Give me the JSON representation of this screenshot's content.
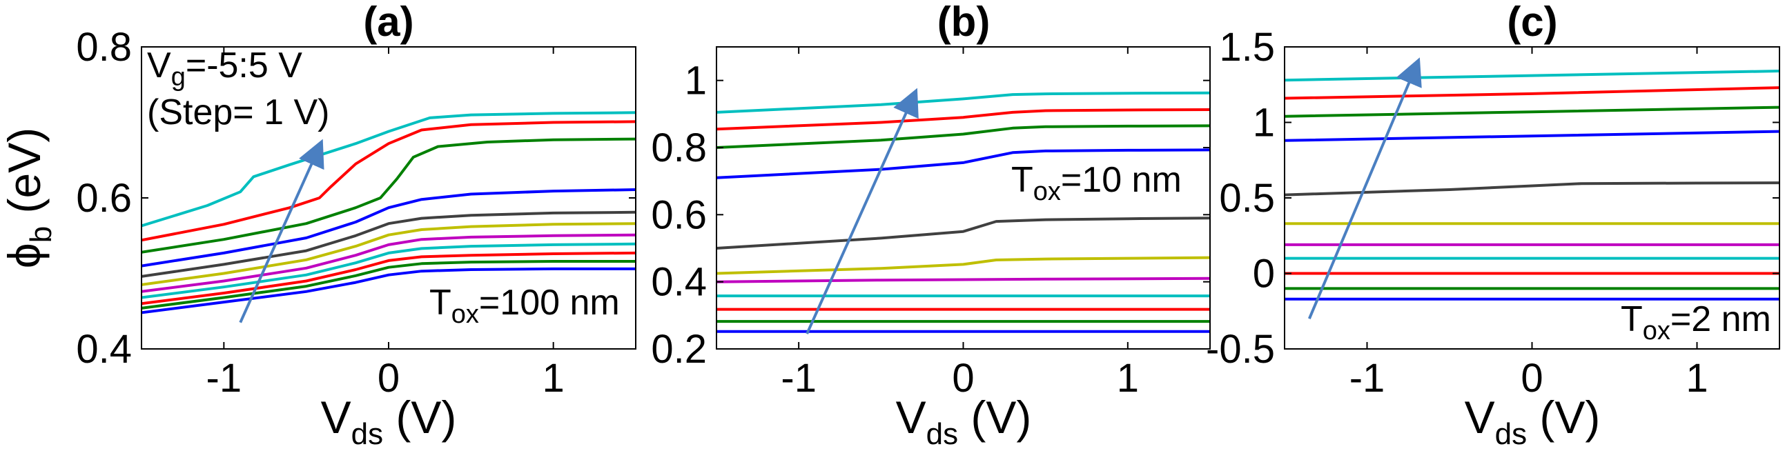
{
  "chart_data": [
    {
      "type": "line",
      "title": "(a)",
      "xlabel": "V",
      "xlabel_sub": "ds",
      "xlabel_unit": " (V)",
      "ylabel": "ϕ",
      "ylabel_sub": "b",
      "ylabel_unit": " (eV)",
      "xlim": [
        -1.5,
        1.5
      ],
      "ylim": [
        0.4,
        0.8
      ],
      "xticks": [
        -1,
        0,
        1
      ],
      "xtick_labels": [
        "-1",
        "0",
        "1"
      ],
      "yticks": [
        0.4,
        0.6,
        0.8
      ],
      "ytick_labels": [
        "0.4",
        "0.6",
        "0.8"
      ],
      "annotations": [
        {
          "base": "V",
          "sub": "g",
          "text": "=-5:5 V"
        },
        {
          "text": "(Step= 1 V)"
        },
        {
          "base": "T",
          "sub": "ox",
          "text": "=100 nm"
        }
      ],
      "arrow": {
        "from": [
          -0.9,
          0.435
        ],
        "to": [
          -0.42,
          0.668
        ]
      },
      "series": [
        {
          "name": "Vg=-5 V",
          "color": "#0000ff",
          "x": [
            -1.5,
            -1.0,
            -0.5,
            -0.2,
            0.0,
            0.2,
            0.5,
            1.0,
            1.5
          ],
          "y": [
            0.448,
            0.462,
            0.476,
            0.488,
            0.498,
            0.503,
            0.505,
            0.506,
            0.506
          ]
        },
        {
          "name": "Vg=-4 V",
          "color": "#008000",
          "x": [
            -1.5,
            -1.0,
            -0.5,
            -0.2,
            0.0,
            0.2,
            0.5,
            1.0,
            1.5
          ],
          "y": [
            0.454,
            0.468,
            0.483,
            0.497,
            0.508,
            0.513,
            0.515,
            0.516,
            0.516
          ]
        },
        {
          "name": "Vg=-3 V",
          "color": "#ff0000",
          "x": [
            -1.5,
            -1.0,
            -0.5,
            -0.2,
            0.0,
            0.2,
            0.5,
            1.0,
            1.5
          ],
          "y": [
            0.46,
            0.474,
            0.49,
            0.505,
            0.517,
            0.522,
            0.524,
            0.526,
            0.527
          ]
        },
        {
          "name": "Vg=-2 V",
          "color": "#00bfbf",
          "x": [
            -1.5,
            -1.0,
            -0.5,
            -0.2,
            0.0,
            0.2,
            0.5,
            1.0,
            1.5
          ],
          "y": [
            0.468,
            0.482,
            0.498,
            0.514,
            0.527,
            0.533,
            0.536,
            0.538,
            0.539
          ]
        },
        {
          "name": "Vg=-1 V",
          "color": "#bf00bf",
          "x": [
            -1.5,
            -1.0,
            -0.5,
            -0.2,
            0.0,
            0.2,
            0.5,
            1.0,
            1.5
          ],
          "y": [
            0.476,
            0.49,
            0.507,
            0.524,
            0.538,
            0.545,
            0.548,
            0.55,
            0.551
          ]
        },
        {
          "name": "Vg=0 V",
          "color": "#bfbf00",
          "x": [
            -1.5,
            -1.0,
            -0.5,
            -0.2,
            0.0,
            0.2,
            0.5,
            1.0,
            1.5
          ],
          "y": [
            0.485,
            0.5,
            0.518,
            0.536,
            0.551,
            0.558,
            0.562,
            0.565,
            0.566
          ]
        },
        {
          "name": "Vg=1 V",
          "color": "#404040",
          "x": [
            -1.5,
            -1.0,
            -0.5,
            -0.2,
            0.0,
            0.2,
            0.5,
            1.0,
            1.5
          ],
          "y": [
            0.496,
            0.512,
            0.53,
            0.55,
            0.566,
            0.573,
            0.577,
            0.58,
            0.581
          ]
        },
        {
          "name": "Vg=2 V",
          "color": "#0000ff",
          "x": [
            -1.5,
            -1.0,
            -0.5,
            -0.2,
            0.0,
            0.2,
            0.5,
            1.0,
            1.5
          ],
          "y": [
            0.51,
            0.527,
            0.547,
            0.568,
            0.587,
            0.598,
            0.605,
            0.609,
            0.611
          ]
        },
        {
          "name": "Vg=3 V",
          "color": "#008000",
          "x": [
            -1.5,
            -1.0,
            -0.5,
            -0.2,
            -0.05,
            0.05,
            0.15,
            0.3,
            0.6,
            1.0,
            1.5
          ],
          "y": [
            0.528,
            0.545,
            0.566,
            0.587,
            0.6,
            0.625,
            0.654,
            0.668,
            0.674,
            0.677,
            0.678
          ]
        },
        {
          "name": "Vg=4 V",
          "color": "#ff0000",
          "x": [
            -1.5,
            -1.0,
            -0.6,
            -0.42,
            -0.35,
            -0.2,
            0.0,
            0.2,
            0.5,
            1.0,
            1.5
          ],
          "y": [
            0.544,
            0.565,
            0.587,
            0.6,
            0.615,
            0.645,
            0.672,
            0.69,
            0.697,
            0.7,
            0.701
          ]
        },
        {
          "name": "Vg=5 V",
          "color": "#00bfbf",
          "x": [
            -1.5,
            -1.1,
            -0.9,
            -0.82,
            -0.6,
            -0.2,
            0.0,
            0.25,
            0.5,
            1.0,
            1.5
          ],
          "y": [
            0.563,
            0.59,
            0.608,
            0.628,
            0.644,
            0.672,
            0.688,
            0.706,
            0.71,
            0.712,
            0.713
          ]
        }
      ]
    },
    {
      "type": "line",
      "title": "(b)",
      "xlabel": "V",
      "xlabel_sub": "ds",
      "xlabel_unit": " (V)",
      "xlim": [
        -1.5,
        1.5
      ],
      "ylim": [
        0.2,
        1.1
      ],
      "xticks": [
        -1,
        0,
        1
      ],
      "xtick_labels": [
        "-1",
        "0",
        "1"
      ],
      "yticks": [
        0.2,
        0.4,
        0.6,
        0.8,
        1.0
      ],
      "ytick_labels": [
        "0.2",
        "0.4",
        "0.6",
        "0.8",
        "1"
      ],
      "annotations": [
        {
          "base": "T",
          "sub": "ox",
          "text": "=10 nm"
        }
      ],
      "arrow": {
        "from": [
          -0.95,
          0.245
        ],
        "to": [
          -0.3,
          0.955
        ]
      },
      "series": [
        {
          "name": "Vg=-5 V",
          "color": "#0000ff",
          "x": [
            -1.5,
            1.5
          ],
          "y": [
            0.252,
            0.252
          ]
        },
        {
          "name": "Vg=-4 V",
          "color": "#008000",
          "x": [
            -1.5,
            1.5
          ],
          "y": [
            0.282,
            0.282
          ]
        },
        {
          "name": "Vg=-3 V",
          "color": "#ff0000",
          "x": [
            -1.5,
            1.5
          ],
          "y": [
            0.318,
            0.318
          ]
        },
        {
          "name": "Vg=-2 V",
          "color": "#00bfbf",
          "x": [
            -1.5,
            1.5
          ],
          "y": [
            0.358,
            0.358
          ]
        },
        {
          "name": "Vg=-1 V",
          "color": "#bf00bf",
          "x": [
            -1.5,
            -0.5,
            0.5,
            1.5
          ],
          "y": [
            0.4,
            0.405,
            0.408,
            0.41
          ]
        },
        {
          "name": "Vg=0 V",
          "color": "#bfbf00",
          "x": [
            -1.5,
            -0.5,
            0.0,
            0.2,
            0.5,
            1.0,
            1.5
          ],
          "y": [
            0.425,
            0.44,
            0.452,
            0.465,
            0.468,
            0.47,
            0.472
          ]
        },
        {
          "name": "Vg=1 V",
          "color": "#404040",
          "x": [
            -1.5,
            -0.5,
            0.0,
            0.2,
            0.5,
            1.0,
            1.5
          ],
          "y": [
            0.5,
            0.53,
            0.55,
            0.58,
            0.585,
            0.588,
            0.59
          ]
        },
        {
          "name": "Vg=2 V",
          "color": "#0000ff",
          "x": [
            -1.5,
            -0.5,
            0.0,
            0.3,
            0.5,
            1.0,
            1.5
          ],
          "y": [
            0.71,
            0.735,
            0.755,
            0.785,
            0.79,
            0.792,
            0.793
          ]
        },
        {
          "name": "Vg=3 V",
          "color": "#008000",
          "x": [
            -1.5,
            -0.5,
            0.0,
            0.3,
            0.5,
            1.0,
            1.5
          ],
          "y": [
            0.8,
            0.822,
            0.84,
            0.858,
            0.862,
            0.864,
            0.865
          ]
        },
        {
          "name": "Vg=4 V",
          "color": "#ff0000",
          "x": [
            -1.5,
            -0.5,
            0.0,
            0.3,
            0.5,
            1.0,
            1.5
          ],
          "y": [
            0.855,
            0.875,
            0.89,
            0.905,
            0.91,
            0.912,
            0.913
          ]
        },
        {
          "name": "Vg=5 V",
          "color": "#00bfbf",
          "x": [
            -1.5,
            -0.5,
            0.0,
            0.3,
            0.5,
            1.0,
            1.5
          ],
          "y": [
            0.905,
            0.928,
            0.945,
            0.958,
            0.96,
            0.962,
            0.963
          ]
        }
      ]
    },
    {
      "type": "line",
      "title": "(c)",
      "xlabel": "V",
      "xlabel_sub": "ds",
      "xlabel_unit": " (V)",
      "xlim": [
        -1.5,
        1.5
      ],
      "ylim": [
        -0.5,
        1.5
      ],
      "xticks": [
        -1,
        0,
        1
      ],
      "xtick_labels": [
        "-1",
        "0",
        "1"
      ],
      "yticks": [
        -0.5,
        0,
        0.5,
        1,
        1.5
      ],
      "ytick_labels": [
        "-0.5",
        "0",
        "0.5",
        "1",
        "1.5"
      ],
      "annotations": [
        {
          "base": "T",
          "sub": "ox",
          "text": "=2 nm"
        }
      ],
      "arrow": {
        "from": [
          -1.35,
          -0.3
        ],
        "to": [
          -0.7,
          1.38
        ]
      },
      "series": [
        {
          "name": "Vg=-5 V",
          "color": "#0000ff",
          "x": [
            -1.5,
            1.5
          ],
          "y": [
            -0.17,
            -0.17
          ]
        },
        {
          "name": "Vg=-4 V",
          "color": "#008000",
          "x": [
            -1.5,
            1.5
          ],
          "y": [
            -0.1,
            -0.1
          ]
        },
        {
          "name": "Vg=-3 V",
          "color": "#ff0000",
          "x": [
            -1.5,
            1.5
          ],
          "y": [
            0.0,
            0.0
          ]
        },
        {
          "name": "Vg=-2 V",
          "color": "#00bfbf",
          "x": [
            -1.5,
            1.5
          ],
          "y": [
            0.1,
            0.1
          ]
        },
        {
          "name": "Vg=-1 V",
          "color": "#bf00bf",
          "x": [
            -1.5,
            1.5
          ],
          "y": [
            0.19,
            0.19
          ]
        },
        {
          "name": "Vg=0 V",
          "color": "#bfbf00",
          "x": [
            -1.5,
            1.5
          ],
          "y": [
            0.33,
            0.33
          ]
        },
        {
          "name": "Vg=1 V",
          "color": "#404040",
          "x": [
            -1.5,
            -0.5,
            0.0,
            0.3,
            1.0,
            1.5
          ],
          "y": [
            0.52,
            0.555,
            0.58,
            0.595,
            0.598,
            0.6
          ]
        },
        {
          "name": "Vg=2 V",
          "color": "#0000ff",
          "x": [
            -1.5,
            0.0,
            1.5
          ],
          "y": [
            0.88,
            0.91,
            0.94
          ]
        },
        {
          "name": "Vg=3 V",
          "color": "#008000",
          "x": [
            -1.5,
            0.0,
            1.5
          ],
          "y": [
            1.04,
            1.07,
            1.1
          ]
        },
        {
          "name": "Vg=4 V",
          "color": "#ff0000",
          "x": [
            -1.5,
            0.0,
            1.5
          ],
          "y": [
            1.16,
            1.19,
            1.23
          ]
        },
        {
          "name": "Vg=5 V",
          "color": "#00bfbf",
          "x": [
            -1.5,
            0.0,
            1.5
          ],
          "y": [
            1.28,
            1.31,
            1.34
          ]
        }
      ]
    }
  ]
}
